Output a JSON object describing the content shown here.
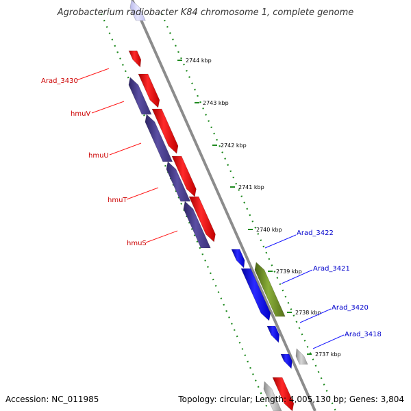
{
  "title": "Agrobacterium radiobacter K84 chromosome 1, complete genome",
  "footer": {
    "accession": "Accession: NC_011985",
    "topology": "Topology: circular; Length: 4,005,130 bp; Genes: 3,804"
  },
  "colors": {
    "backbone": "#8c8c8c",
    "dotted_guide": "#1f8a1f",
    "forward_gene": "#ff1a1a",
    "forward_label": "#cc0000",
    "reverse_gene": "#1a1aff",
    "reverse_label": "#0000cc",
    "operon": "#4a3f8c",
    "olive_gene": "#6b8e23",
    "grey_gene": "#b0b0b0"
  },
  "ticks": [
    {
      "label": "2744 kbp"
    },
    {
      "label": "2743 kbp"
    },
    {
      "label": "2742 kbp"
    },
    {
      "label": "2741 kbp"
    },
    {
      "label": "2740 kbp"
    },
    {
      "label": "2739 kbp"
    },
    {
      "label": "2738 kbp"
    },
    {
      "label": "2737 kbp"
    }
  ],
  "forward_labels": [
    {
      "label": "Arad_3430"
    },
    {
      "label": "hmuV"
    },
    {
      "label": "hmuU"
    },
    {
      "label": "hmuT"
    },
    {
      "label": "hmuS"
    }
  ],
  "reverse_labels": [
    {
      "label": "Arad_3422"
    },
    {
      "label": "Arad_3421"
    },
    {
      "label": "Arad_3420"
    },
    {
      "label": "Arad_3418"
    }
  ]
}
